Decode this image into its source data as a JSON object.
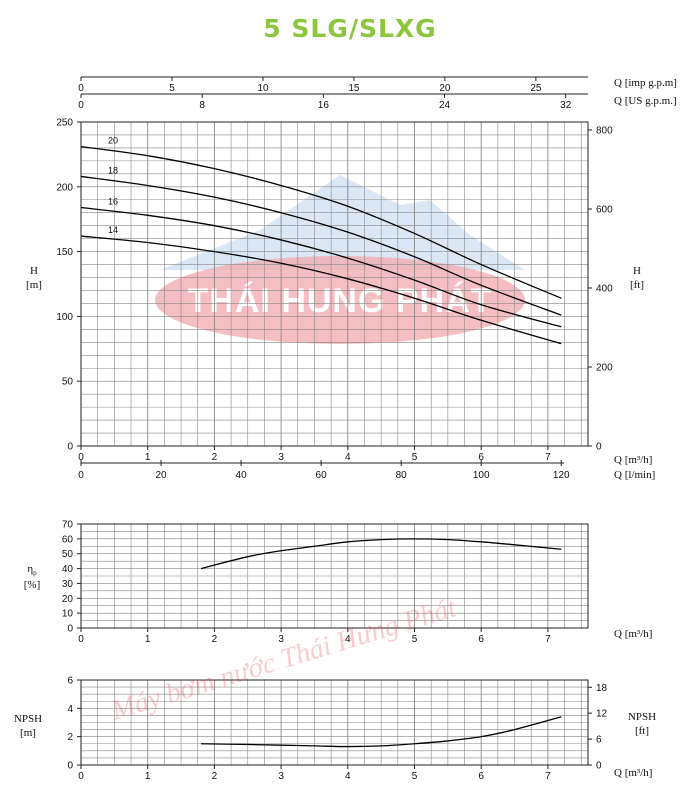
{
  "title": "5 SLG/SLXG",
  "colors": {
    "title": "#8cc63e",
    "grid": "#888888",
    "curve": "#000000",
    "wm_red": "#e24b56",
    "wm_blue": "#6f9ed2"
  },
  "watermark": {
    "logo_text": "THÁI HUNG PHÁT",
    "diag_text": "Máy bơm nước Thái Hưng Phát"
  },
  "chart_data": [
    {
      "type": "line",
      "name": "head",
      "xlabel": "Q [m³/h]",
      "xlabel2": "Q [l/min]",
      "top_xlabel": "Q [imp g.p.m]",
      "top_xlabel2": "Q [US g.p.m.]",
      "ylabel": "H [m]",
      "ylabel_right": "H [ft]",
      "xlim": [
        0,
        7.6
      ],
      "ylim": [
        0,
        250
      ],
      "x_ticks": [
        0,
        1,
        2,
        3,
        4,
        5,
        6,
        7
      ],
      "lmin_ticks": [
        0,
        20,
        40,
        60,
        80,
        100,
        120
      ],
      "imp_ticks": [
        0,
        5,
        10,
        15,
        20,
        25
      ],
      "us_ticks": [
        0,
        8,
        16,
        24,
        32
      ],
      "y_ticks": [
        0,
        50,
        100,
        150,
        200,
        250
      ],
      "ft_ticks": [
        0,
        200,
        400,
        600,
        800
      ],
      "grid": true,
      "series": [
        {
          "name": "20",
          "x": [
            0,
            1,
            2,
            3,
            4,
            5,
            6,
            7.2
          ],
          "y": [
            231,
            224,
            214,
            201,
            185,
            164,
            140,
            114
          ]
        },
        {
          "name": "18",
          "x": [
            0,
            1,
            2,
            3,
            4,
            5,
            6,
            7.2
          ],
          "y": [
            208,
            201,
            192,
            180,
            165,
            146,
            124,
            101
          ]
        },
        {
          "name": "16",
          "x": [
            0,
            1,
            2,
            3,
            4,
            5,
            6,
            7.2
          ],
          "y": [
            184,
            178,
            170,
            159,
            145,
            128,
            109,
            92
          ]
        },
        {
          "name": "14",
          "x": [
            0,
            1,
            2,
            3,
            4,
            5,
            6,
            7.2
          ],
          "y": [
            162,
            157,
            150,
            141,
            129,
            114,
            97,
            79
          ]
        }
      ]
    },
    {
      "type": "line",
      "name": "efficiency",
      "xlabel": "Q [m³/h]",
      "ylabel": "ηp [%]",
      "ylabel_main": "η",
      "ylabel_sub": "p",
      "ylabel_unit": "[%]",
      "xlim": [
        0,
        7.6
      ],
      "ylim": [
        0,
        70
      ],
      "x_ticks": [
        0,
        1,
        2,
        3,
        4,
        5,
        6,
        7
      ],
      "y_ticks": [
        0,
        10,
        20,
        30,
        40,
        50,
        60,
        70
      ],
      "grid": true,
      "series": [
        {
          "x": [
            1.8,
            2.5,
            3,
            3.5,
            4,
            4.5,
            5,
            5.5,
            6,
            6.5,
            7.2
          ],
          "y": [
            40,
            48,
            52,
            55,
            58,
            59.5,
            60,
            59.5,
            58,
            56,
            53
          ]
        }
      ]
    },
    {
      "type": "line",
      "name": "npsh",
      "xlabel": "Q [m³/h]",
      "ylabel": "NPSH [m]",
      "ylabel_main": "NPSH",
      "ylabel_unit": "[m]",
      "ylabel_right": "NPSH [ft]",
      "ylabel_right_main": "NPSH",
      "ylabel_right_unit": "[ft]",
      "xlim": [
        0,
        7.6
      ],
      "ylim": [
        0,
        6
      ],
      "x_ticks": [
        0,
        1,
        2,
        3,
        4,
        5,
        6,
        7
      ],
      "y_ticks": [
        0,
        2,
        4,
        6
      ],
      "ft_ticks": [
        0,
        6,
        12,
        18
      ],
      "grid": true,
      "series": [
        {
          "x": [
            1.8,
            2.5,
            3,
            3.5,
            4,
            4.5,
            5,
            5.5,
            6,
            6.5,
            7.2
          ],
          "y": [
            1.5,
            1.45,
            1.4,
            1.35,
            1.3,
            1.35,
            1.5,
            1.7,
            2.0,
            2.5,
            3.4
          ]
        }
      ]
    }
  ]
}
